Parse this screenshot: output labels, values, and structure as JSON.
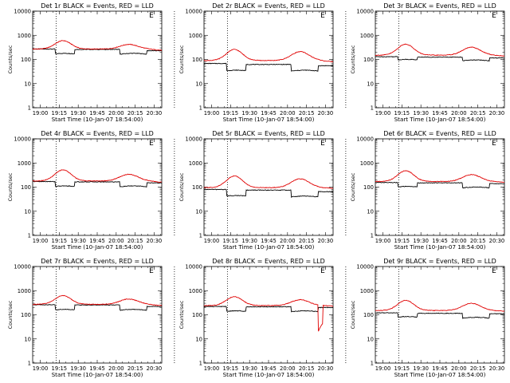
{
  "chart_data": [
    {
      "type": "line",
      "title": "Det 1r BLACK = Events, RED = LLD",
      "xlabel": "Start Time (10-Jan-07 18:54:00)",
      "ylabel": "Counts/sec",
      "xticks": [
        "19:00",
        "19:15",
        "19:30",
        "19:45",
        "20:00",
        "20:15",
        "20:30"
      ],
      "yscale": "log",
      "ylim": [
        1,
        10000
      ],
      "yticks": [
        "1",
        "10",
        "100",
        "1000",
        "10000"
      ],
      "vlines_min": [
        18.5,
        112
      ],
      "flag_min": 115,
      "series": [
        {
          "color": "#000000",
          "level": [
            270,
            160,
            260,
            260,
            160,
            230
          ],
          "shape": "steady"
        },
        {
          "color": "#e00000",
          "level": [
            270,
            600,
            270,
            270,
            420,
            240
          ],
          "shape": "dome"
        }
      ]
    },
    {
      "type": "line",
      "title": "Det 2r BLACK = Events, RED = LLD",
      "xlabel": "Start Time (10-Jan-07 18:54:00)",
      "ylabel": "Counts/sec",
      "xticks": [
        "19:00",
        "19:15",
        "19:30",
        "19:45",
        "20:00",
        "20:15",
        "20:30"
      ],
      "yscale": "log",
      "ylim": [
        1,
        10000
      ],
      "yticks": [
        "1",
        "10",
        "100",
        "1000",
        "10000"
      ],
      "vlines_min": [
        18.5,
        112
      ],
      "flag_min": 115,
      "series": [
        {
          "color": "#000000",
          "level": [
            68,
            32,
            62,
            62,
            32,
            55
          ],
          "shape": "steady"
        },
        {
          "color": "#e00000",
          "level": [
            90,
            260,
            90,
            90,
            210,
            80
          ],
          "shape": "dome"
        }
      ]
    },
    {
      "type": "line",
      "title": "Det 3r BLACK = Events, RED = LLD",
      "xlabel": "Start Time (10-Jan-07 18:54:00)",
      "ylabel": "Counts/sec",
      "xticks": [
        "19:00",
        "19:15",
        "19:30",
        "19:45",
        "20:00",
        "20:15",
        "20:30"
      ],
      "yscale": "log",
      "ylim": [
        1,
        10000
      ],
      "yticks": [
        "1",
        "10",
        "100",
        "1000",
        "10000"
      ],
      "vlines_min": [
        18.5,
        112
      ],
      "flag_min": 115,
      "series": [
        {
          "color": "#000000",
          "level": [
            130,
            90,
            125,
            125,
            85,
            115
          ],
          "shape": "steady"
        },
        {
          "color": "#e00000",
          "level": [
            150,
            430,
            150,
            150,
            320,
            140
          ],
          "shape": "dome"
        }
      ]
    },
    {
      "type": "line",
      "title": "Det 4r BLACK = Events, RED = LLD",
      "xlabel": "Start Time (10-Jan-07 18:54:00)",
      "ylabel": "Counts/sec",
      "xticks": [
        "19:00",
        "19:15",
        "19:30",
        "19:45",
        "20:00",
        "20:15",
        "20:30"
      ],
      "yscale": "log",
      "ylim": [
        1,
        10000
      ],
      "yticks": [
        "1",
        "10",
        "100",
        "1000",
        "10000"
      ],
      "vlines_min": [
        18.5,
        112
      ],
      "flag_min": 115,
      "series": [
        {
          "color": "#000000",
          "level": [
            170,
            100,
            165,
            165,
            100,
            150
          ],
          "shape": "steady"
        },
        {
          "color": "#e00000",
          "level": [
            180,
            520,
            180,
            180,
            340,
            160
          ],
          "shape": "dome"
        }
      ]
    },
    {
      "type": "line",
      "title": "Det 5r BLACK = Events, RED = LLD",
      "xlabel": "Start Time (10-Jan-07 18:54:00)",
      "ylabel": "Counts/sec",
      "xticks": [
        "19:00",
        "19:15",
        "19:30",
        "19:45",
        "20:00",
        "20:15",
        "20:30"
      ],
      "yscale": "log",
      "ylim": [
        1,
        10000
      ],
      "yticks": [
        "1",
        "10",
        "100",
        "1000",
        "10000"
      ],
      "vlines_min": [
        18.5,
        112
      ],
      "flag_min": 115,
      "series": [
        {
          "color": "#000000",
          "level": [
            80,
            40,
            75,
            75,
            38,
            65
          ],
          "shape": "steady"
        },
        {
          "color": "#e00000",
          "level": [
            95,
            290,
            95,
            95,
            220,
            90
          ],
          "shape": "dome"
        }
      ]
    },
    {
      "type": "line",
      "title": "Det 6r BLACK = Events, RED = LLD",
      "xlabel": "Start Time (10-Jan-07 18:54:00)",
      "ylabel": "Counts/sec",
      "xticks": [
        "19:00",
        "19:15",
        "19:30",
        "19:45",
        "20:00",
        "20:15",
        "20:30"
      ],
      "yscale": "log",
      "ylim": [
        1,
        10000
      ],
      "yticks": [
        "1",
        "10",
        "100",
        "1000",
        "10000"
      ],
      "vlines_min": [
        18.5,
        112
      ],
      "flag_min": 115,
      "series": [
        {
          "color": "#000000",
          "level": [
            155,
            95,
            150,
            150,
            90,
            140
          ],
          "shape": "steady"
        },
        {
          "color": "#e00000",
          "level": [
            170,
            480,
            170,
            170,
            330,
            160
          ],
          "shape": "dome"
        }
      ]
    },
    {
      "type": "line",
      "title": "Det 7r BLACK = Events, RED = LLD",
      "xlabel": "Start Time (10-Jan-07 18:54:00)",
      "ylabel": "Counts/sec",
      "xticks": [
        "19:00",
        "19:15",
        "19:30",
        "19:45",
        "20:00",
        "20:15",
        "20:30"
      ],
      "yscale": "log",
      "ylim": [
        1,
        10000
      ],
      "yticks": [
        "1",
        "10",
        "100",
        "1000",
        "10000"
      ],
      "vlines_min": [
        18.5,
        112
      ],
      "flag_min": 115,
      "series": [
        {
          "color": "#000000",
          "level": [
            260,
            150,
            255,
            255,
            150,
            220
          ],
          "shape": "steady"
        },
        {
          "color": "#e00000",
          "level": [
            270,
            620,
            270,
            270,
            450,
            240
          ],
          "shape": "dome"
        }
      ]
    },
    {
      "type": "line",
      "title": "Det 8r BLACK = Events, RED = LLD",
      "xlabel": "Start Time (10-Jan-07 18:54:00)",
      "ylabel": "Counts/sec",
      "xticks": [
        "19:00",
        "19:15",
        "19:30",
        "19:45",
        "20:00",
        "20:15",
        "20:30"
      ],
      "yscale": "log",
      "ylim": [
        1,
        10000
      ],
      "yticks": [
        "1",
        "10",
        "100",
        "1000",
        "10000"
      ],
      "vlines_min": [
        18.5,
        112
      ],
      "flag_min": 115,
      "series": [
        {
          "color": "#000000",
          "level": [
            220,
            130,
            215,
            215,
            130,
            200
          ],
          "shape": "steady"
        },
        {
          "color": "#e00000",
          "level": [
            240,
            560,
            240,
            240,
            420,
            230
          ],
          "shape": "dome",
          "dip": {
            "start_min": 84,
            "end_min": 88,
            "value": 18
          }
        }
      ]
    },
    {
      "type": "line",
      "title": "Det 9r BLACK = Events, RED = LLD",
      "xlabel": "Start Time (10-Jan-07 18:54:00)",
      "ylabel": "Counts/sec",
      "xticks": [
        "19:00",
        "19:15",
        "19:30",
        "19:45",
        "20:00",
        "20:15",
        "20:30"
      ],
      "yscale": "log",
      "ylim": [
        1,
        10000
      ],
      "yticks": [
        "1",
        "10",
        "100",
        "1000",
        "10000"
      ],
      "vlines_min": [
        18.5,
        112
      ],
      "flag_min": 115,
      "series": [
        {
          "color": "#000000",
          "level": [
            120,
            75,
            115,
            115,
            70,
            110
          ],
          "shape": "steady"
        },
        {
          "color": "#e00000",
          "level": [
            150,
            400,
            150,
            150,
            300,
            140
          ],
          "shape": "dome"
        }
      ]
    }
  ],
  "flag_label": "E"
}
